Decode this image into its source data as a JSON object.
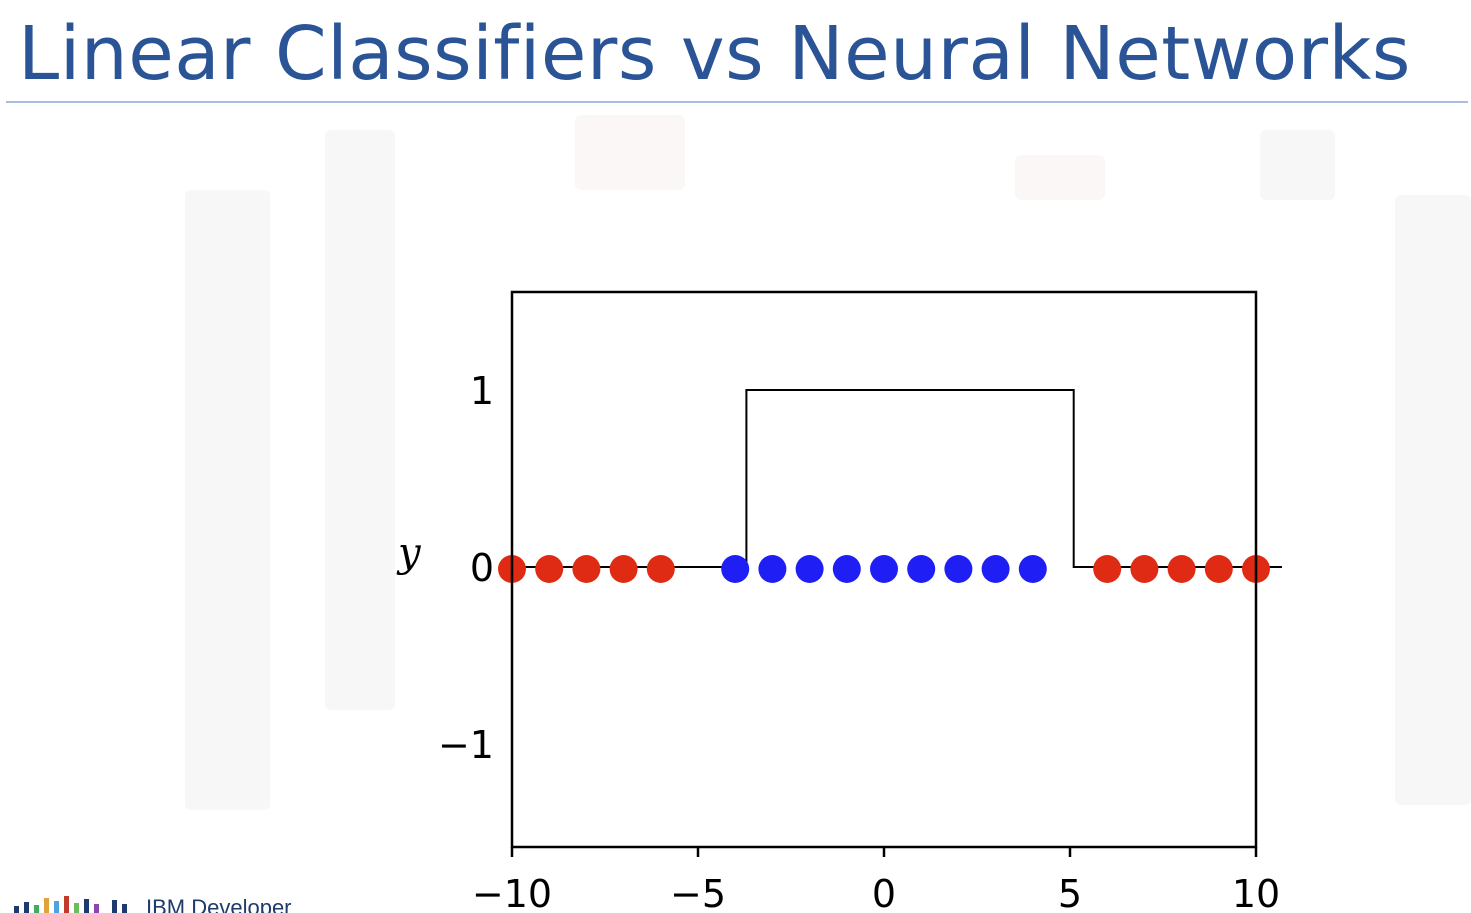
{
  "slide": {
    "title": "Linear Classifiers vs Neural Networks"
  },
  "footer": {
    "logo_text": "IBM Developer"
  },
  "colors": {
    "title": "#2a5496",
    "class_outside": "#e02b14",
    "class_inside": "#1f1ff5",
    "step_line": "#000000"
  },
  "chart_data": {
    "type": "scatter",
    "title": "",
    "xlabel": "",
    "ylabel": "y",
    "xlim": [
      -10,
      10
    ],
    "ylim": [
      -1.5,
      1.5
    ],
    "x_ticks": [
      -10,
      -5,
      0,
      5,
      10
    ],
    "x_tick_labels": [
      "−10",
      "−5",
      "0",
      "5",
      "10"
    ],
    "y_ticks": [
      1,
      0,
      -1
    ],
    "y_tick_labels": [
      "1",
      "0",
      "−1"
    ],
    "grid": false,
    "series": [
      {
        "color": "#e02b14",
        "points": [
          {
            "x": -10,
            "y": 0
          },
          {
            "x": -9,
            "y": 0
          },
          {
            "x": -8,
            "y": 0
          },
          {
            "x": -7,
            "y": 0
          },
          {
            "x": -6,
            "y": 0
          },
          {
            "x": 6,
            "y": 0
          },
          {
            "x": 7,
            "y": 0
          },
          {
            "x": 8,
            "y": 0
          },
          {
            "x": 9,
            "y": 0
          },
          {
            "x": 10,
            "y": 0
          }
        ]
      },
      {
        "color": "#1f1ff5",
        "points": [
          {
            "x": -4,
            "y": 0
          },
          {
            "x": -3,
            "y": 0
          },
          {
            "x": -2,
            "y": 0
          },
          {
            "x": -1,
            "y": 0
          },
          {
            "x": 0,
            "y": 0
          },
          {
            "x": 1,
            "y": 0
          },
          {
            "x": 2,
            "y": 0
          },
          {
            "x": 3,
            "y": 0
          },
          {
            "x": 4,
            "y": 0
          }
        ]
      }
    ],
    "step_function": {
      "color": "#000000",
      "points": [
        {
          "x": -10,
          "y": 0
        },
        {
          "x": -3.7,
          "y": 0
        },
        {
          "x": -3.7,
          "y": 1
        },
        {
          "x": 5.1,
          "y": 1
        },
        {
          "x": 5.1,
          "y": 0
        },
        {
          "x": 10.7,
          "y": 0
        }
      ]
    }
  }
}
